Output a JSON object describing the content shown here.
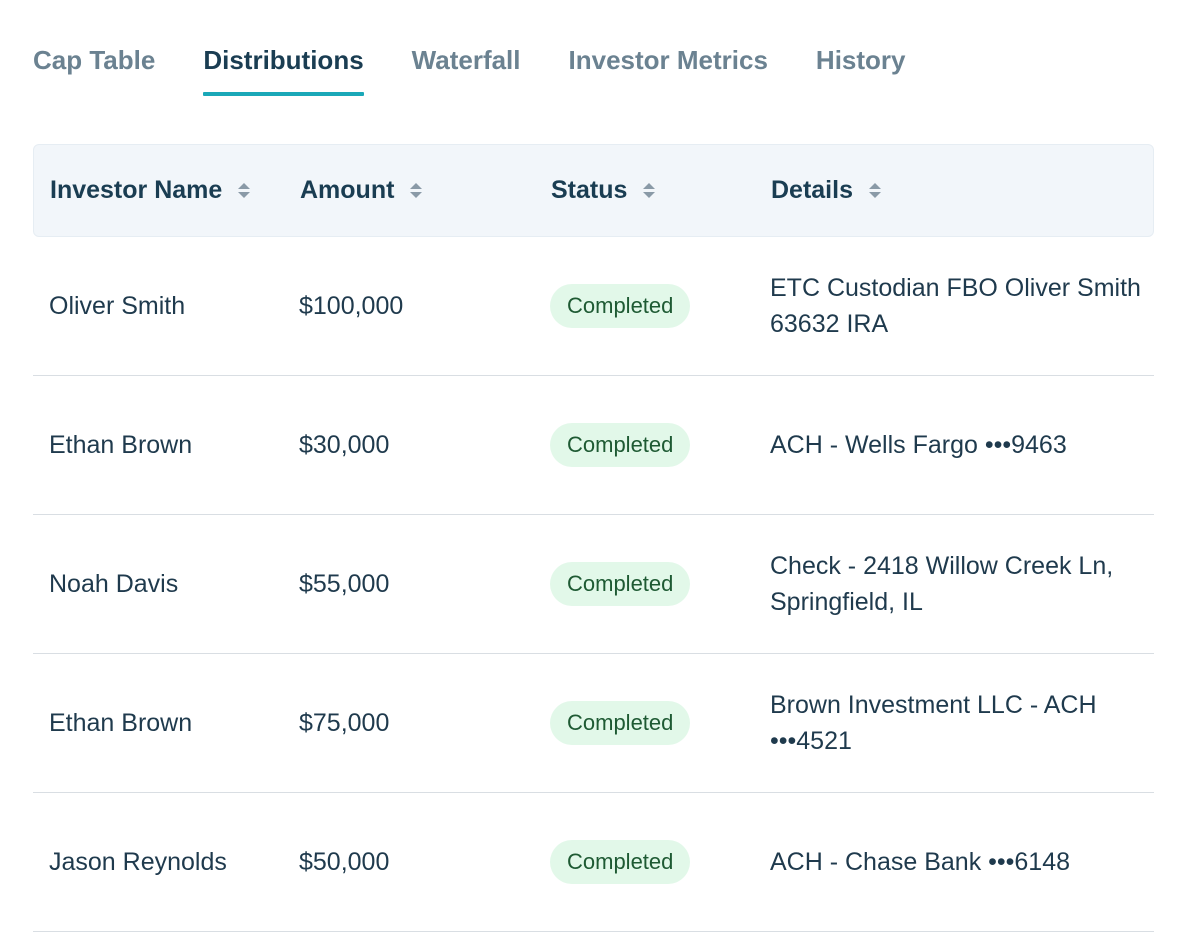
{
  "tabs": [
    {
      "label": "Cap Table",
      "active": false
    },
    {
      "label": "Distributions",
      "active": true
    },
    {
      "label": "Waterfall",
      "active": false
    },
    {
      "label": "Investor Metrics",
      "active": false
    },
    {
      "label": "History",
      "active": false
    }
  ],
  "table": {
    "headers": {
      "name": "Investor Name",
      "amount": "Amount",
      "status": "Status",
      "details": "Details"
    },
    "rows": [
      {
        "name": "Oliver Smith",
        "amount": "$100,000",
        "status": "Completed",
        "details": "ETC Custodian FBO Oliver Smith 63632 IRA"
      },
      {
        "name": "Ethan Brown",
        "amount": "$30,000",
        "status": "Completed",
        "details": "ACH - Wells Fargo •••9463"
      },
      {
        "name": "Noah Davis",
        "amount": "$55,000",
        "status": "Completed",
        "details": "Check - 2418 Willow Creek Ln, Springfield, IL"
      },
      {
        "name": "Ethan Brown",
        "amount": "$75,000",
        "status": "Completed",
        "details": "Brown Investment LLC - ACH •••4521"
      },
      {
        "name": "Jason Reynolds",
        "amount": "$50,000",
        "status": "Completed",
        "details": "ACH - Chase Bank •••6148"
      }
    ]
  },
  "colors": {
    "accent": "#1aa8b8",
    "badge_bg": "#e2f8e9",
    "badge_text": "#1e5a33",
    "header_bg": "#f2f6fa"
  },
  "icons": {
    "sort": "sort-icon"
  }
}
